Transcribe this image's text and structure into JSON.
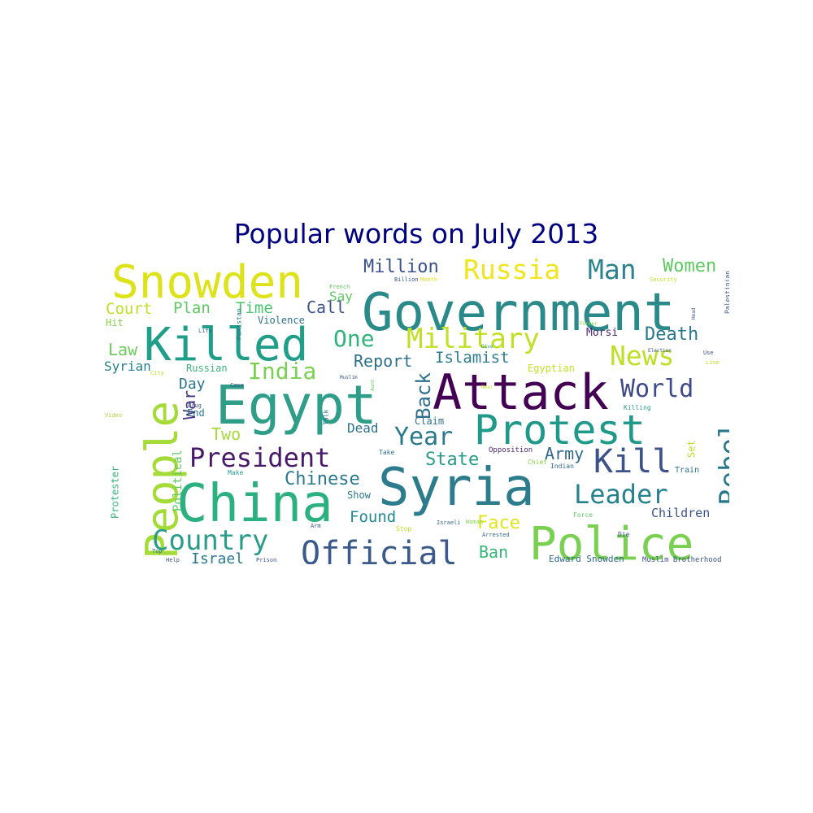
{
  "chart_data": {
    "type": "wordcloud",
    "title": "Popular words on July 2013",
    "words": [
      {
        "text": "Government",
        "color": "#2a8a8a"
      },
      {
        "text": "Snowden",
        "color": "#dde318"
      },
      {
        "text": "Attack",
        "color": "#440154"
      },
      {
        "text": "Egypt",
        "color": "#2e9e88"
      },
      {
        "text": "Syria",
        "color": "#2c7c8e"
      },
      {
        "text": "China",
        "color": "#2bb07f"
      },
      {
        "text": "Police",
        "color": "#7ad151"
      },
      {
        "text": "Killed",
        "color": "#1f9e89"
      },
      {
        "text": "Protest",
        "color": "#1f9a8a"
      },
      {
        "text": "Military",
        "color": "#c2df23"
      },
      {
        "text": "People",
        "color": "#a5db36"
      },
      {
        "text": "Official",
        "color": "#3b5a8c"
      },
      {
        "text": "Russia",
        "color": "#f1e51d"
      },
      {
        "text": "President",
        "color": "#48186a"
      },
      {
        "text": "Country",
        "color": "#2a9c8a"
      },
      {
        "text": "Rebel",
        "color": "#2a788e"
      },
      {
        "text": "Leader",
        "color": "#26828e"
      },
      {
        "text": "Kill",
        "color": "#3b528b"
      },
      {
        "text": "World",
        "color": "#3e4a89"
      },
      {
        "text": "News",
        "color": "#bddf26"
      },
      {
        "text": "Man",
        "color": "#2c838e"
      },
      {
        "text": "One",
        "color": "#2fb47c"
      },
      {
        "text": "India",
        "color": "#7ad151"
      },
      {
        "text": "Year",
        "color": "#2a788e"
      },
      {
        "text": "Back",
        "color": "#2d708e"
      },
      {
        "text": "Million",
        "color": "#3b528b"
      },
      {
        "text": "Women",
        "color": "#5ec962"
      },
      {
        "text": "Death",
        "color": "#2a788e"
      },
      {
        "text": "Chinese",
        "color": "#2a788e"
      },
      {
        "text": "Army",
        "color": "#31688e"
      },
      {
        "text": "State",
        "color": "#2a9c8a"
      },
      {
        "text": "Report",
        "color": "#2d708e"
      },
      {
        "text": "Islamist",
        "color": "#2c7c8e"
      },
      {
        "text": "Face",
        "color": "#e2e418"
      },
      {
        "text": "Ban",
        "color": "#35b779"
      },
      {
        "text": "Found",
        "color": "#23898e"
      },
      {
        "text": "Israel",
        "color": "#2a788e"
      },
      {
        "text": "War",
        "color": "#46327e"
      },
      {
        "text": "Call",
        "color": "#3b528b"
      },
      {
        "text": "Time",
        "color": "#4ac16d"
      },
      {
        "text": "Plan",
        "color": "#5ec962"
      },
      {
        "text": "Court",
        "color": "#bddf26"
      },
      {
        "text": "Law",
        "color": "#6ccd5a"
      },
      {
        "text": "Two",
        "color": "#a5db36"
      },
      {
        "text": "Day",
        "color": "#2a788e"
      },
      {
        "text": "Dead",
        "color": "#2c728e"
      },
      {
        "text": "Children",
        "color": "#3b528b"
      },
      {
        "text": "Say",
        "color": "#5ec962"
      },
      {
        "text": "Morsi",
        "color": "#482878"
      },
      {
        "text": "Syrian",
        "color": "#26828e"
      },
      {
        "text": "Egyptian",
        "color": "#c2df23"
      },
      {
        "text": "Show",
        "color": "#2a788e"
      },
      {
        "text": "Claim",
        "color": "#2c728e"
      },
      {
        "text": "Violence",
        "color": "#2c728e"
      },
      {
        "text": "Russian",
        "color": "#3eb37a"
      },
      {
        "text": "End",
        "color": "#2a788e"
      },
      {
        "text": "Hit",
        "color": "#84d44b"
      },
      {
        "text": "Political",
        "color": "#5ec962"
      },
      {
        "text": "Protester",
        "color": "#35b779"
      },
      {
        "text": "Edward Snowden",
        "color": "#31688e"
      },
      {
        "text": "Muslim Brotherhood",
        "color": "#3b528b"
      },
      {
        "text": "Set",
        "color": "#c2df23"
      },
      {
        "text": "Opposition",
        "color": "#482878"
      },
      {
        "text": "Indian",
        "color": "#31688e"
      },
      {
        "text": "Train",
        "color": "#2c728e"
      },
      {
        "text": "Pakistan",
        "color": "#2c728e"
      },
      {
        "text": "Palestinian",
        "color": "#3b528b"
      },
      {
        "text": "Killing",
        "color": "#2a9c8a"
      },
      {
        "text": "Take",
        "color": "#2c728e"
      },
      {
        "text": "Talk",
        "color": "#2c728e"
      },
      {
        "text": "Chief",
        "color": "#84d44b"
      },
      {
        "text": "Force",
        "color": "#5ec962"
      },
      {
        "text": "Die",
        "color": "#3b528b"
      },
      {
        "text": "Make",
        "color": "#2a9c8a"
      },
      {
        "text": "Woman",
        "color": "#84d44b"
      },
      {
        "text": "Israeli",
        "color": "#31688e"
      },
      {
        "text": "Arrested",
        "color": "#31688e"
      },
      {
        "text": "Stop",
        "color": "#c2df23"
      },
      {
        "text": "Arm",
        "color": "#3b528b"
      },
      {
        "text": "Help",
        "color": "#3b528b"
      },
      {
        "text": "Prison",
        "color": "#3b528b"
      },
      {
        "text": "Top",
        "color": "#2c728e"
      },
      {
        "text": "French",
        "color": "#5ec962"
      },
      {
        "text": "Billion",
        "color": "#3b528b"
      },
      {
        "text": "Month",
        "color": "#dde318"
      },
      {
        "text": "Security",
        "color": "#c2df23"
      },
      {
        "text": "Life",
        "color": "#31688e"
      },
      {
        "text": "Case",
        "color": "#3b528b"
      },
      {
        "text": "Muslim",
        "color": "#3b528b"
      },
      {
        "text": "Aunt",
        "color": "#5ec962"
      },
      {
        "text": "Give",
        "color": "#2a9c8a"
      },
      {
        "text": "Former",
        "color": "#84d44b"
      },
      {
        "text": "Head",
        "color": "#3b528b"
      },
      {
        "text": "Use",
        "color": "#3b528b"
      },
      {
        "text": "Live",
        "color": "#c2df23"
      },
      {
        "text": "Election",
        "color": "#3b528b"
      },
      {
        "text": "Drug",
        "color": "#3b528b"
      },
      {
        "text": "City",
        "color": "#c2df23"
      },
      {
        "text": "Video",
        "color": "#a5db36"
      },
      {
        "text": "Near",
        "color": "#c2df23"
      }
    ]
  }
}
